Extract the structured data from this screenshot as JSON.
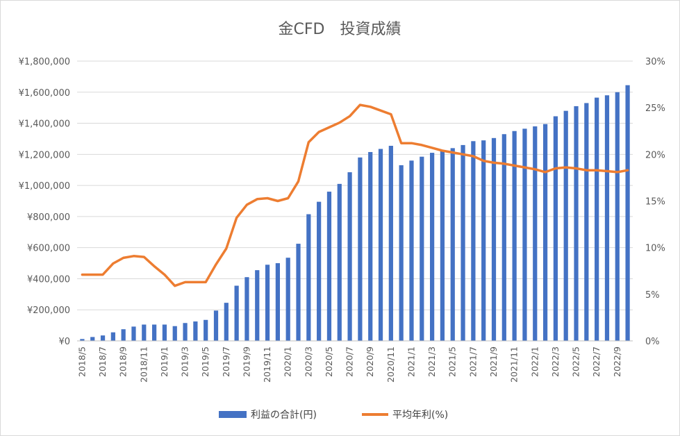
{
  "chart_data": {
    "type": "bar+line",
    "title": "金CFD　投資成績",
    "x": [
      "2018/5",
      "2018/6",
      "2018/7",
      "2018/8",
      "2018/9",
      "2018/10",
      "2018/11",
      "2018/12",
      "2019/1",
      "2019/2",
      "2019/3",
      "2019/4",
      "2019/5",
      "2019/6",
      "2019/7",
      "2019/8",
      "2019/9",
      "2019/10",
      "2019/11",
      "2019/12",
      "2020/1",
      "2020/2",
      "2020/3",
      "2020/4",
      "2020/5",
      "2020/6",
      "2020/7",
      "2020/8",
      "2020/9",
      "2020/10",
      "2020/11",
      "2020/12",
      "2021/1",
      "2021/2",
      "2021/3",
      "2021/4",
      "2021/5",
      "2021/6",
      "2021/7",
      "2021/8",
      "2021/9",
      "2021/10",
      "2021/11",
      "2021/12",
      "2022/1",
      "2022/2",
      "2022/3",
      "2022/4",
      "2022/5",
      "2022/6",
      "2022/7",
      "2022/8",
      "2022/9",
      "2022/10"
    ],
    "x_tick_labels": [
      "2018/5",
      "2018/7",
      "2018/9",
      "2018/11",
      "2019/1",
      "2019/3",
      "2019/5",
      "2019/7",
      "2019/9",
      "2019/11",
      "2020/1",
      "2020/3",
      "2020/5",
      "2020/7",
      "2020/9",
      "2020/11",
      "2021/1",
      "2021/3",
      "2021/5",
      "2021/7",
      "2021/9",
      "2021/11",
      "2022/1",
      "2022/3",
      "2022/5",
      "2022/7",
      "2022/9"
    ],
    "series": [
      {
        "name": "利益の合計(円)",
        "type": "bar",
        "axis": "left",
        "color": "#4472C4",
        "values": [
          12000,
          25000,
          35000,
          55000,
          75000,
          92000,
          105000,
          105000,
          105000,
          95000,
          115000,
          125000,
          135000,
          195000,
          245000,
          355000,
          410000,
          455000,
          490000,
          500000,
          535000,
          625000,
          815000,
          895000,
          960000,
          1010000,
          1085000,
          1180000,
          1215000,
          1235000,
          1255000,
          1130000,
          1160000,
          1185000,
          1210000,
          1220000,
          1240000,
          1260000,
          1285000,
          1290000,
          1305000,
          1330000,
          1350000,
          1365000,
          1380000,
          1395000,
          1445000,
          1480000,
          1510000,
          1530000,
          1565000,
          1580000,
          1600000,
          1645000
        ]
      },
      {
        "name": "平均年利(%)",
        "type": "line",
        "axis": "right",
        "color": "#ED7D31",
        "values": [
          7.1,
          7.1,
          7.1,
          8.3,
          8.9,
          9.1,
          9.0,
          8.0,
          7.1,
          5.9,
          6.3,
          6.3,
          6.3,
          8.2,
          9.9,
          13.2,
          14.6,
          15.2,
          15.3,
          15.0,
          15.3,
          17.1,
          21.3,
          22.4,
          22.9,
          23.4,
          24.1,
          25.3,
          25.1,
          24.7,
          24.3,
          21.2,
          21.2,
          21.0,
          20.7,
          20.4,
          20.2,
          20.0,
          19.8,
          19.3,
          19.1,
          19.0,
          18.8,
          18.6,
          18.4,
          18.1,
          18.5,
          18.6,
          18.5,
          18.3,
          18.3,
          18.2,
          18.1,
          18.3
        ]
      }
    ],
    "y_left": {
      "min": 0,
      "max": 1800000,
      "ticks": [
        "¥0",
        "¥200,000",
        "¥400,000",
        "¥600,000",
        "¥800,000",
        "¥1,000,000",
        "¥1,200,000",
        "¥1,400,000",
        "¥1,600,000",
        "¥1,800,000"
      ]
    },
    "y_right": {
      "min": 0,
      "max": 30,
      "ticks": [
        "0%",
        "5%",
        "10%",
        "15%",
        "20%",
        "25%",
        "30%"
      ]
    },
    "grid": "horizontal",
    "legend_position": "bottom",
    "legend": [
      "利益の合計(円)",
      "平均年利(%)"
    ]
  }
}
